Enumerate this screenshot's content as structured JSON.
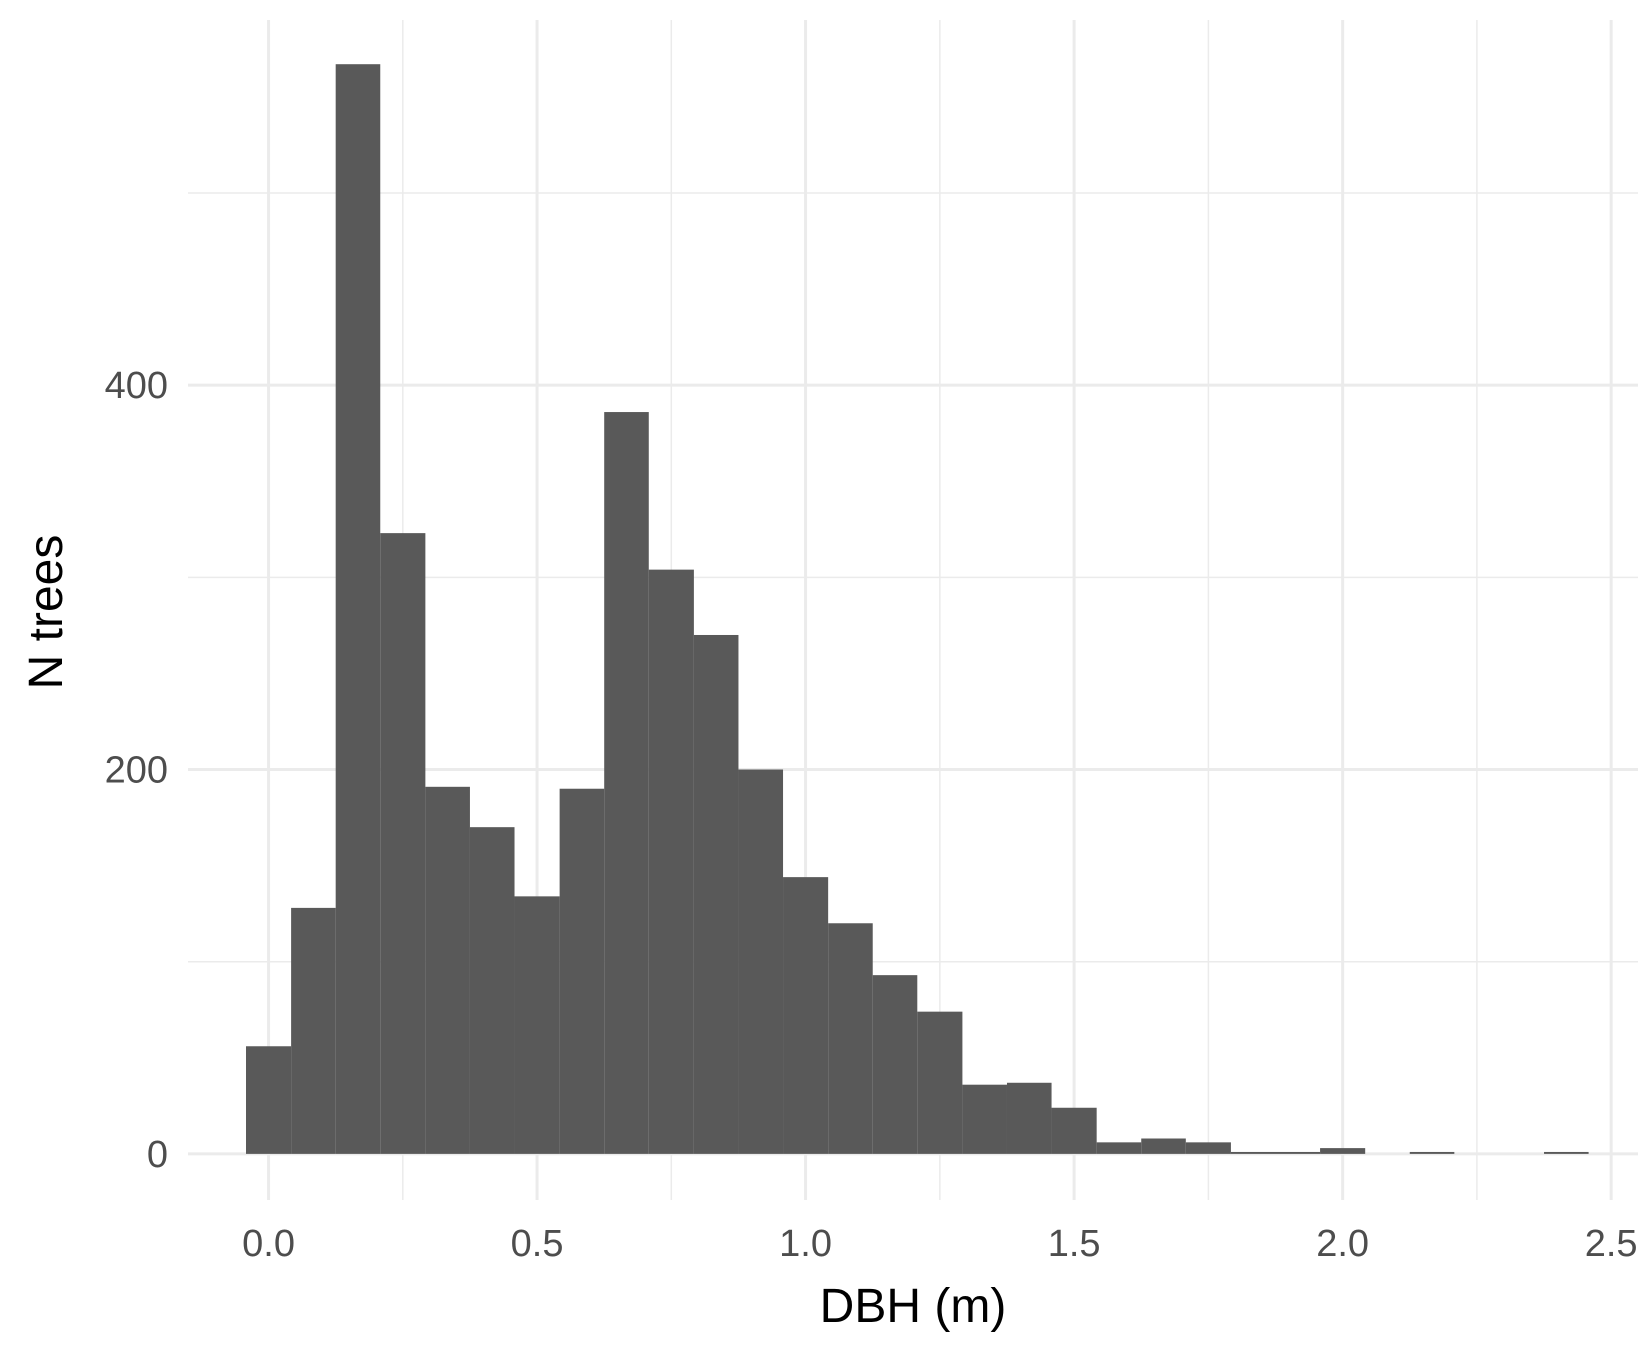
{
  "chart_data": {
    "type": "bar",
    "subtype": "histogram",
    "title": "",
    "xlabel": "DBH (m)",
    "ylabel": "N trees",
    "xlim": [
      -0.15,
      2.55
    ],
    "ylim": [
      -24,
      590
    ],
    "x_ticks": [
      0.0,
      0.5,
      1.0,
      1.5,
      2.0,
      2.5
    ],
    "x_tick_labels": [
      "0.0",
      "0.5",
      "1.0",
      "1.5",
      "2.0",
      "2.5"
    ],
    "y_ticks": [
      0,
      200,
      400
    ],
    "y_tick_labels": [
      "0",
      "200",
      "400"
    ],
    "y_minor_ticks": [
      100,
      300,
      500
    ],
    "grid": true,
    "legend": "none",
    "bar_color": "#595959",
    "bin_width": 0.0833,
    "bins": [
      {
        "x0": -0.042,
        "x1": 0.042,
        "count": 56
      },
      {
        "x0": 0.042,
        "x1": 0.125,
        "count": 128
      },
      {
        "x0": 0.125,
        "x1": 0.208,
        "count": 567
      },
      {
        "x0": 0.208,
        "x1": 0.292,
        "count": 323
      },
      {
        "x0": 0.292,
        "x1": 0.375,
        "count": 191
      },
      {
        "x0": 0.375,
        "x1": 0.458,
        "count": 170
      },
      {
        "x0": 0.458,
        "x1": 0.542,
        "count": 134
      },
      {
        "x0": 0.542,
        "x1": 0.625,
        "count": 190
      },
      {
        "x0": 0.625,
        "x1": 0.708,
        "count": 386
      },
      {
        "x0": 0.708,
        "x1": 0.792,
        "count": 304
      },
      {
        "x0": 0.792,
        "x1": 0.875,
        "count": 270
      },
      {
        "x0": 0.875,
        "x1": 0.958,
        "count": 200
      },
      {
        "x0": 0.958,
        "x1": 1.042,
        "count": 144
      },
      {
        "x0": 1.042,
        "x1": 1.125,
        "count": 120
      },
      {
        "x0": 1.125,
        "x1": 1.208,
        "count": 93
      },
      {
        "x0": 1.208,
        "x1": 1.292,
        "count": 74
      },
      {
        "x0": 1.292,
        "x1": 1.375,
        "count": 36
      },
      {
        "x0": 1.375,
        "x1": 1.458,
        "count": 37
      },
      {
        "x0": 1.458,
        "x1": 1.542,
        "count": 24
      },
      {
        "x0": 1.542,
        "x1": 1.625,
        "count": 6
      },
      {
        "x0": 1.625,
        "x1": 1.708,
        "count": 8
      },
      {
        "x0": 1.708,
        "x1": 1.792,
        "count": 6
      },
      {
        "x0": 1.792,
        "x1": 1.875,
        "count": 1
      },
      {
        "x0": 1.875,
        "x1": 1.958,
        "count": 1
      },
      {
        "x0": 1.958,
        "x1": 2.042,
        "count": 3
      },
      {
        "x0": 2.042,
        "x1": 2.125,
        "count": 0
      },
      {
        "x0": 2.125,
        "x1": 2.208,
        "count": 1
      },
      {
        "x0": 2.208,
        "x1": 2.292,
        "count": 0
      },
      {
        "x0": 2.292,
        "x1": 2.375,
        "count": 0
      },
      {
        "x0": 2.375,
        "x1": 2.458,
        "count": 1
      }
    ]
  }
}
